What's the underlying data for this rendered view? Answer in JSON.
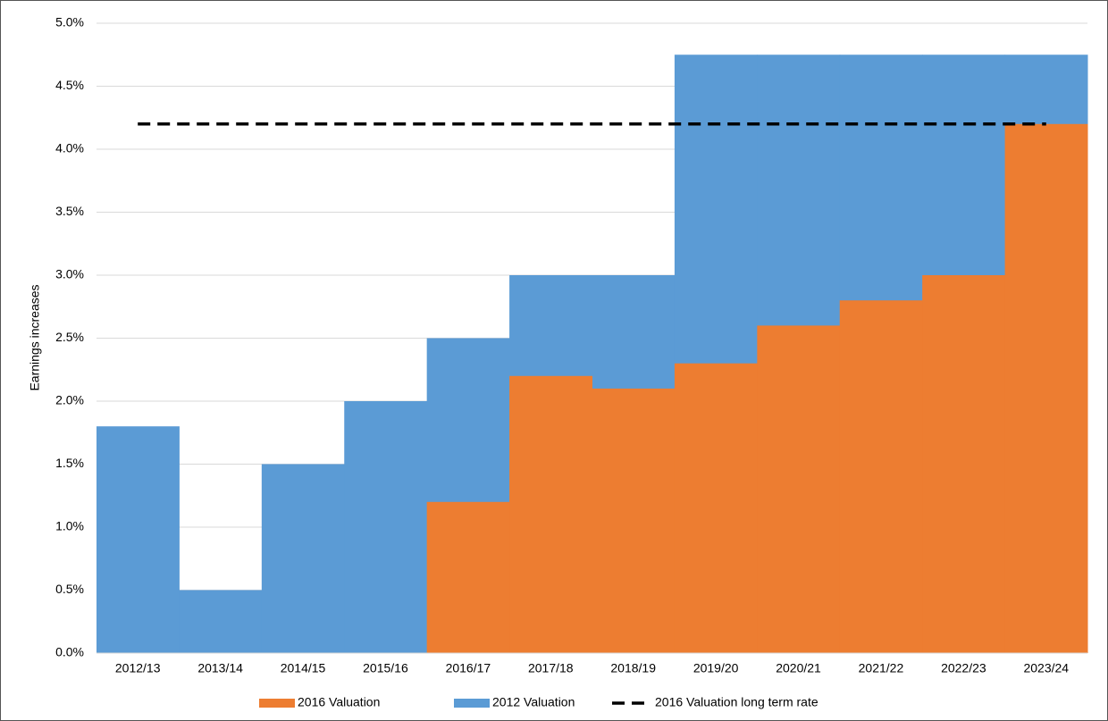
{
  "chart_data": {
    "type": "bar",
    "bar_mode": "overlap",
    "y_label": "Earnings increases",
    "categories": [
      "2012/13",
      "2013/14",
      "2014/15",
      "2015/16",
      "2016/17",
      "2017/18",
      "2018/19",
      "2019/20",
      "2020/21",
      "2021/22",
      "2022/23",
      "2023/24"
    ],
    "series": [
      {
        "name": "2016 Valuation",
        "type": "bar",
        "color": "#ed7d31",
        "values": [
          null,
          null,
          null,
          null,
          1.2,
          2.2,
          2.1,
          2.3,
          2.6,
          2.8,
          3.0,
          4.2
        ]
      },
      {
        "name": "2012 Valuation",
        "type": "bar",
        "color": "#5b9bd5",
        "values": [
          1.8,
          0.5,
          1.5,
          2.0,
          2.5,
          3.0,
          3.0,
          4.75,
          4.75,
          4.75,
          4.75,
          4.75
        ]
      },
      {
        "name": "2016 Valuation long term rate",
        "type": "line",
        "dashed": true,
        "color": "#000000",
        "values": [
          4.2,
          4.2,
          4.2,
          4.2,
          4.2,
          4.2,
          4.2,
          4.2,
          4.2,
          4.2,
          4.2,
          4.2
        ]
      }
    ],
    "ylim": [
      0,
      5
    ],
    "yticks": [
      {
        "value": 0,
        "label": "0.0%"
      },
      {
        "value": 0.5,
        "label": "0.5%"
      },
      {
        "value": 1,
        "label": "1.0%"
      },
      {
        "value": 1.5,
        "label": "1.5%"
      },
      {
        "value": 2,
        "label": "2.0%"
      },
      {
        "value": 2.5,
        "label": "2.5%"
      },
      {
        "value": 3,
        "label": "3.0%"
      },
      {
        "value": 3.5,
        "label": "3.5%"
      },
      {
        "value": 4,
        "label": "4.0%"
      },
      {
        "value": 4.5,
        "label": "4.5%"
      },
      {
        "value": 5,
        "label": "5.0%"
      }
    ],
    "grid": true,
    "legend": "bottom"
  }
}
